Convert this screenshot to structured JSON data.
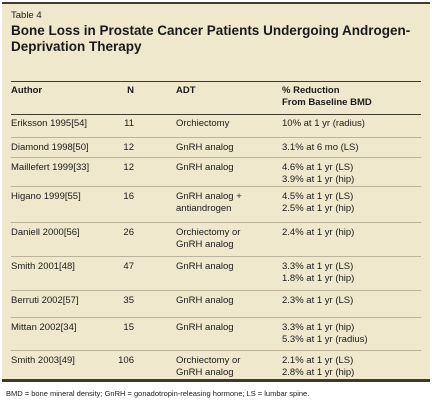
{
  "table_label": "Table 4",
  "title": "Bone Loss in Prostate Cancer Patients Undergoing Androgen-Deprivation Therapy",
  "headers": {
    "author": "Author",
    "n": "N",
    "adt": "ADT",
    "reduction_line1": "% Reduction",
    "reduction_line2": "From Baseline BMD"
  },
  "rows": [
    {
      "author": "Eriksson 1995[54]",
      "n": "11",
      "adt1": "Orchiectomy",
      "adt2": "",
      "red1": "10% at 1 yr (radius)",
      "red2": ""
    },
    {
      "author": "Diamond 1998[50]",
      "n": "12",
      "adt1": "GnRH analog",
      "adt2": "",
      "red1": "3.1% at 6 mo (LS)",
      "red2": ""
    },
    {
      "author": "Maillefert 1999[33]",
      "n": "12",
      "adt1": "GnRH analog",
      "adt2": "",
      "red1": "4.6% at 1 yr (LS)",
      "red2": "3.9% at 1 yr (hip)"
    },
    {
      "author": "Higano 1999[55]",
      "n": "16",
      "adt1": "GnRH analog +",
      "adt2": "antiandrogen",
      "red1": "4.5% at 1 yr (LS)",
      "red2": "2.5% at 1 yr (hip)"
    },
    {
      "author": "Daniell 2000[56]",
      "n": "26",
      "adt1": "Orchiectomy or",
      "adt2": "GnRH analog",
      "red1": "2.4% at 1 yr (hip)",
      "red2": ""
    },
    {
      "author": "Smith 2001[48]",
      "n": "47",
      "adt1": "GnRH analog",
      "adt2": "",
      "red1": "3.3% at 1 yr (LS)",
      "red2": "1.8% at 1 yr (hip)"
    },
    {
      "author": "Berruti 2002[57]",
      "n": "35",
      "adt1": "GnRH analog",
      "adt2": "",
      "red1": "2.3% at 1 yr (LS)",
      "red2": ""
    },
    {
      "author": "Mittan 2002[34]",
      "n": "15",
      "adt1": "GnRH analog",
      "adt2": "",
      "red1": "3.3% at 1 yr (hip)",
      "red2": "5.3% at 1 yr (radius)"
    },
    {
      "author": "Smith 2003[49]",
      "n": "106",
      "adt1": "Orchiectomy or",
      "adt2": "GnRH analog",
      "red1": "2.1% at 1 yr (LS)",
      "red2": "2.8% at 1 yr (hip)"
    }
  ],
  "footnote": "BMD = bone mineral density; GnRH = gonadotropin-releasing hormone; LS = lumbar spine."
}
